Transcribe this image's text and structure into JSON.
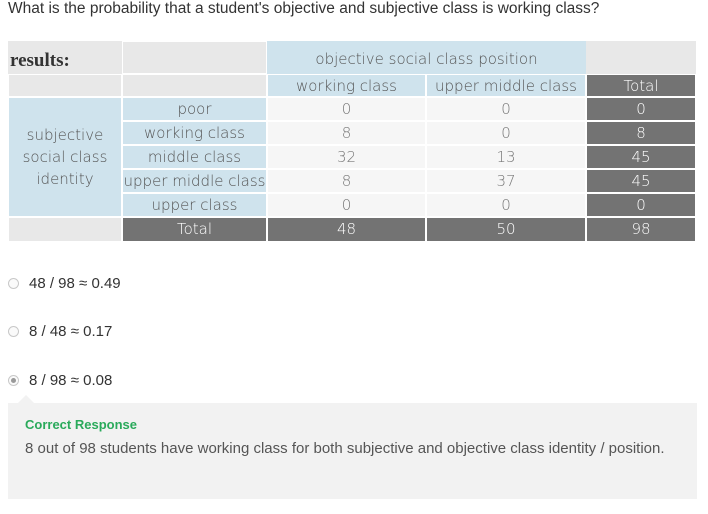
{
  "question": "What is the probability that a student's objective and subjective class is working class?",
  "table": {
    "results_label": "results:",
    "column_group_header": "objective social class position",
    "column_headers": [
      "working class",
      "upper middle class",
      "Total"
    ],
    "row_group_header": "subjective\nsocial class\nidentity",
    "rows": [
      {
        "label": "poor",
        "values": [
          "0",
          "0",
          "0"
        ]
      },
      {
        "label": "working class",
        "values": [
          "8",
          "0",
          "8"
        ]
      },
      {
        "label": "middle class",
        "values": [
          "32",
          "13",
          "45"
        ]
      },
      {
        "label": "upper middle class",
        "values": [
          "8",
          "37",
          "45"
        ]
      },
      {
        "label": "upper class",
        "values": [
          "0",
          "0",
          "0"
        ]
      }
    ],
    "total_row": {
      "label": "Total",
      "values": [
        "48",
        "50",
        "98"
      ]
    }
  },
  "options": [
    {
      "label": "48 / 98 ≈ 0.49",
      "selected": false
    },
    {
      "label": "8 / 48 ≈ 0.17",
      "selected": false
    },
    {
      "label": "8 / 98 ≈ 0.08",
      "selected": true
    }
  ],
  "feedback": {
    "title": "Correct Response",
    "text": "8 out of 98 students have working class for both subjective and objective class identity / position."
  },
  "colors": {
    "header_blue": "#cfe3ed",
    "total_dark": "#737373",
    "correct_green": "#2aaa5b"
  }
}
